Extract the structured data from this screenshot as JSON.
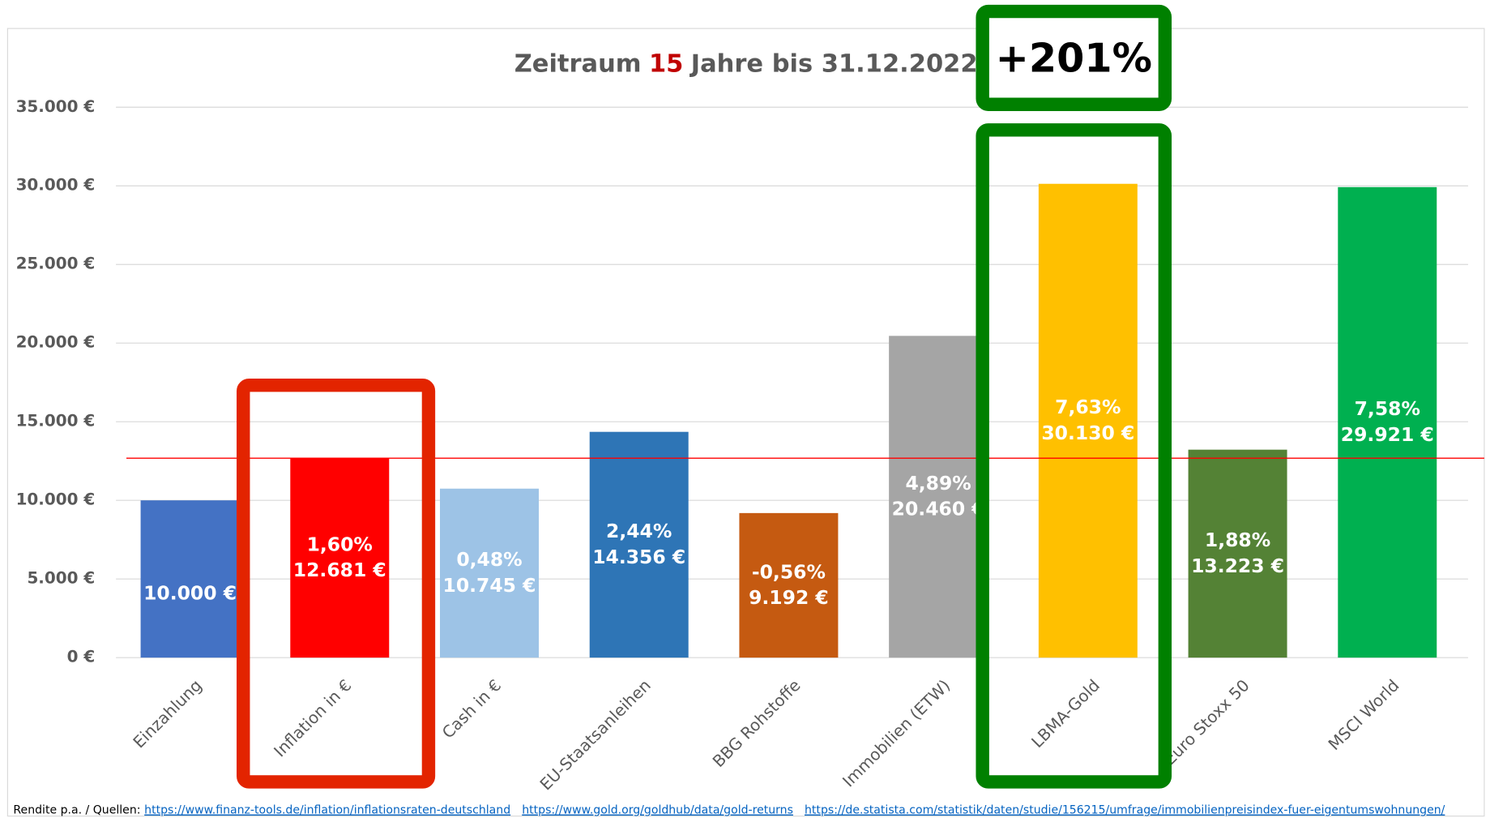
{
  "chart_data": {
    "type": "bar",
    "title_parts": [
      "Zeitraum",
      "15",
      "Jahre bis 31.12.2022"
    ],
    "annotation": "+201%",
    "categories": [
      "Einzahlung",
      "Inflation in €",
      "Cash in €",
      "EU-Staatsanleihen",
      "BBG Rohstoffe",
      "Immobilien (ETW)",
      "LBMA-Gold",
      "Euro Stoxx 50",
      "MSCI World"
    ],
    "values": [
      10000,
      12681,
      10745,
      14356,
      9192,
      20460,
      30130,
      13223,
      29921
    ],
    "value_labels": [
      "10.000 €",
      "12.681 €",
      "10.745 €",
      "14.356 €",
      "9.192 €",
      "20.460 €",
      "30.130 €",
      "13.223 €",
      "29.921 €"
    ],
    "rate_labels": [
      null,
      "1,60%",
      "0,48%",
      "2,44%",
      "-0,56%",
      "4,89%",
      "7,63%",
      "1,88%",
      "7,58%"
    ],
    "colors": [
      "#4472c4",
      "#ff0000",
      "#9dc3e6",
      "#2e75b6",
      "#c55a11",
      "#a5a5a5",
      "#ffc000",
      "#548235",
      "#00b050"
    ],
    "ylim": [
      0,
      35000
    ],
    "yticks": [
      {
        "value": 0,
        "label": "0 €"
      },
      {
        "value": 5000,
        "label": "5.000 €"
      },
      {
        "value": 10000,
        "label": "10.000 €"
      },
      {
        "value": 15000,
        "label": "15.000 €"
      },
      {
        "value": 20000,
        "label": "20.000 €"
      },
      {
        "value": 25000,
        "label": "25.000 €"
      },
      {
        "value": 30000,
        "label": "30.000 €"
      },
      {
        "value": 35000,
        "label": "35.000 €"
      }
    ],
    "grid": true,
    "footer": {
      "label": "Rendite p.a. / Quellen:",
      "links": [
        "https://www.finanz-tools.de/inflation/inflationsraten-deutschland",
        "https://www.gold.org/goldhub/data/gold-returns",
        "https://de.statista.com/statistik/daten/studie/156215/umfrage/immobilienpreisindex-fuer-eigentumswohnungen/"
      ]
    }
  }
}
